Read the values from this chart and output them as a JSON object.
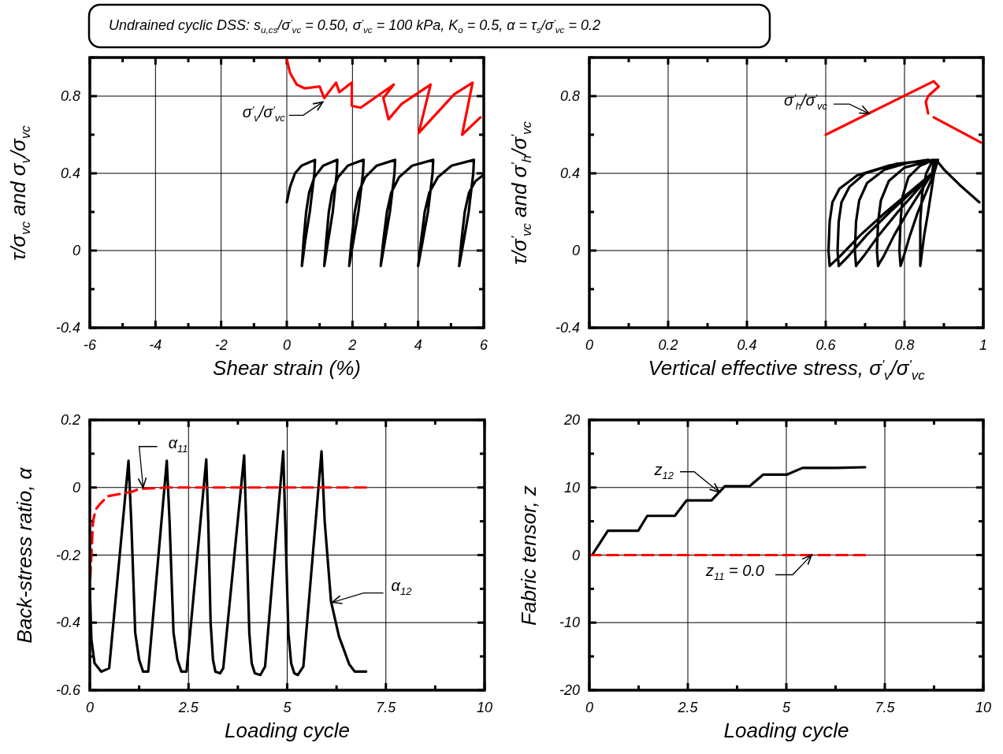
{
  "chart_data": [
    {
      "type": "line",
      "title": "Undrained cyclic DSS: s$_{u,cs}$/σ$^{'}$$_{vc}$ = 0.50, σ$^{'}$$_{vc}$ = 100 kPa, K$_{o}$ = 0.5, α = τ$_{s}$/σ$^{'}$$_{vc}$ = 0.2",
      "xlabel": "Shear strain (%)",
      "ylabel": "τ/σ$_{vc}$ and σ$_{v}$/σ$_{vc}$",
      "xlim": [
        -6,
        6
      ],
      "ylim": [
        -0.4,
        1.0
      ],
      "xticks": [
        -6,
        {
          "value": -5,
          "label": null
        },
        -4,
        {
          "value": -3,
          "label": null
        },
        -2,
        {
          "value": -1,
          "label": null
        },
        0,
        {
          "value": 1,
          "label": null
        },
        2,
        {
          "value": 3,
          "label": null
        },
        4,
        {
          "value": 5,
          "label": null
        },
        6
      ],
      "yticks": [
        -0.4,
        {
          "value": -0.2,
          "label": null
        },
        0,
        {
          "value": 0.2,
          "label": null
        },
        0.4,
        {
          "value": 0.6,
          "label": null
        },
        0.8,
        {
          "value": 1.0,
          "label": null
        }
      ],
      "grid": true,
      "series": [
        {
          "color": "#000000",
          "x": [
            0,
            0.1,
            0.25,
            0.45,
            0.86,
            0.84,
            0.7,
            0.56,
            0.46,
            0.51,
            0.59,
            0.68,
            0.84,
            1.11,
            1.54,
            1.52,
            1.4,
            1.26,
            1.14,
            1.2,
            1.28,
            1.38,
            1.56,
            1.86,
            2.34,
            2.32,
            2.18,
            2.03,
            1.9,
            1.97,
            2.07,
            2.18,
            2.39,
            2.74,
            3.3,
            3.28,
            3.14,
            2.99,
            2.86,
            2.94,
            3.05,
            3.18,
            3.42,
            3.82,
            4.46,
            4.44,
            4.3,
            4.14,
            4.0,
            4.09,
            4.2,
            4.34,
            4.6,
            5.02,
            5.7,
            5.68,
            5.54,
            5.39,
            5.25,
            5.32,
            5.42,
            5.55,
            5.75,
            5.98
          ],
          "values": [
            0.25,
            0.33,
            0.4,
            0.44,
            0.47,
            0.4,
            0.2,
            0.05,
            -0.08,
            0.05,
            0.2,
            0.3,
            0.38,
            0.44,
            0.47,
            0.4,
            0.2,
            0.05,
            -0.08,
            0.05,
            0.2,
            0.3,
            0.38,
            0.44,
            0.47,
            0.4,
            0.2,
            0.05,
            -0.08,
            0.05,
            0.2,
            0.3,
            0.38,
            0.44,
            0.47,
            0.4,
            0.2,
            0.05,
            -0.08,
            0.05,
            0.2,
            0.3,
            0.38,
            0.44,
            0.47,
            0.4,
            0.2,
            0.05,
            -0.08,
            0.05,
            0.2,
            0.3,
            0.38,
            0.44,
            0.47,
            0.4,
            0.2,
            0.05,
            -0.08,
            0.05,
            0.2,
            0.3,
            0.36,
            0.39
          ]
        },
        {
          "color": "#ff0000",
          "line_style": "solid",
          "x": [
            0,
            0.1,
            0.3,
            0.55,
            1.0,
            1.14,
            1.5,
            1.6,
            1.98,
            1.98,
            2.25,
            3.26,
            2.94,
            3.1,
            3.5,
            4.38,
            4.02,
            5.1,
            5.66,
            5.34,
            5.9
          ],
          "values": [
            0.99,
            0.92,
            0.86,
            0.84,
            0.85,
            0.79,
            0.87,
            0.82,
            0.87,
            0.75,
            0.74,
            0.86,
            0.79,
            0.68,
            0.76,
            0.86,
            0.61,
            0.81,
            0.87,
            0.6,
            0.69
          ]
        }
      ],
      "annotations": [
        {
          "text": "σ$^{'}$$_{v}$/σ$^{'}$$_{vc}$",
          "x": 1.1,
          "y": 0.77
        }
      ]
    },
    {
      "type": "line",
      "xlabel": "Vertical effective stress, σ$^{'}$$_{v}$/σ$^{'}$$_{vc}$",
      "ylabel": "τ/σ$^{'}$$_{vc}$ and σ$^{'}$$_{h}$/σ$^{'}$$_{vc}$",
      "xlim": [
        0,
        1
      ],
      "ylim": [
        -0.4,
        1.0
      ],
      "xticks": [
        0,
        {
          "value": 0.1,
          "label": null
        },
        0.2,
        {
          "value": 0.3,
          "label": null
        },
        0.4,
        {
          "value": 0.5,
          "label": null
        },
        0.6,
        {
          "value": 0.7,
          "label": null
        },
        0.8,
        {
          "value": 0.9,
          "label": null
        },
        1
      ],
      "yticks": [
        -0.4,
        {
          "value": -0.2,
          "label": null
        },
        0,
        {
          "value": 0.2,
          "label": null
        },
        0.4,
        {
          "value": 0.6,
          "label": null
        },
        0.8,
        {
          "value": 1.0,
          "label": null
        }
      ],
      "grid": true,
      "series": [
        {
          "color": "#000000",
          "x": [
            0.99,
            0.94,
            0.9,
            0.88,
            0.875,
            0.86,
            0.85,
            0.843,
            0.84,
            0.84,
            0.845,
            0.855,
            0.87,
            0.885,
            0.875,
            0.834,
            0.814,
            0.798,
            0.79,
            0.787,
            0.79,
            0.795,
            0.81,
            0.84,
            0.875,
            0.87,
            0.808,
            0.774,
            0.747,
            0.735,
            0.733,
            0.73,
            0.733,
            0.74,
            0.76,
            0.8,
            0.875,
            0.87,
            0.783,
            0.735,
            0.696,
            0.68,
            0.677,
            0.674,
            0.677,
            0.685,
            0.705,
            0.75,
            0.81,
            0.875,
            0.87,
            0.763,
            0.704,
            0.657,
            0.638,
            0.633,
            0.63,
            0.633,
            0.64,
            0.66,
            0.7,
            0.78,
            0.875,
            0.87,
            0.753,
            0.688,
            0.636,
            0.615,
            0.61,
            0.607,
            0.61,
            0.617,
            0.635,
            0.68,
            0.76,
            0.86
          ],
          "values": [
            0.25,
            0.34,
            0.42,
            0.47,
            0.4,
            0.2,
            0.08,
            -0.03,
            -0.08,
            0.15,
            0.3,
            0.4,
            0.46,
            0.47,
            0.4,
            0.2,
            0.08,
            -0.03,
            -0.08,
            0.0,
            0.15,
            0.28,
            0.38,
            0.44,
            0.47,
            0.4,
            0.2,
            0.08,
            -0.03,
            -0.07,
            -0.08,
            0.0,
            0.15,
            0.26,
            0.36,
            0.43,
            0.47,
            0.4,
            0.2,
            0.08,
            -0.03,
            -0.07,
            -0.08,
            0.0,
            0.15,
            0.26,
            0.35,
            0.42,
            0.455,
            0.47,
            0.4,
            0.2,
            0.08,
            -0.03,
            -0.07,
            -0.08,
            0.0,
            0.15,
            0.25,
            0.33,
            0.4,
            0.45,
            0.47,
            0.4,
            0.2,
            0.08,
            -0.03,
            -0.07,
            -0.08,
            0.0,
            0.15,
            0.25,
            0.32,
            0.39,
            0.44,
            0.47
          ]
        },
        {
          "color": "#ff0000",
          "line_style": "solid",
          "x": [
            0.6,
            0.874,
            0.887,
            0.86,
            0.854,
            0.86,
            0.867,
            0.874,
            0.994
          ],
          "values": [
            0.6,
            0.877,
            0.85,
            0.8,
            0.77,
            0.71,
            null,
            0.69,
            0.56
          ]
        }
      ],
      "annotations": [
        {
          "text": "σ$^{'}$$_{h}$/σ$^{'}$$_{vc}$",
          "x": 0.71,
          "y": 0.71
        }
      ]
    },
    {
      "type": "line",
      "xlabel": "Loading cycle",
      "ylabel": "Back-stress ratio, α",
      "xlim": [
        0,
        10
      ],
      "ylim": [
        -0.6,
        0.2
      ],
      "xticks": [
        0,
        {
          "value": 1.25,
          "label": null
        },
        2.5,
        {
          "value": 3.75,
          "label": null
        },
        5,
        {
          "value": 6.25,
          "label": null
        },
        7.5,
        {
          "value": 8.75,
          "label": null
        },
        10
      ],
      "yticks": [
        -0.6,
        {
          "value": -0.5,
          "label": null
        },
        -0.4,
        {
          "value": -0.3,
          "label": null
        },
        -0.2,
        {
          "value": -0.1,
          "label": null
        },
        0,
        {
          "value": 0.1,
          "label": null
        },
        0.2
      ],
      "grid": true,
      "series": [
        {
          "color": "#000000",
          "x": [
            0,
            0.04,
            0.12,
            0.29,
            0.49,
            0.98,
            1.05,
            1.15,
            1.25,
            1.35,
            1.48,
            1.95,
            2.02,
            2.12,
            2.22,
            2.32,
            2.45,
            2.95,
            3.0,
            3.06,
            3.12,
            3.18,
            3.3,
            3.38,
            3.91,
            3.96,
            4.04,
            4.1,
            4.18,
            4.32,
            4.44,
            4.9,
            4.95,
            5.03,
            5.1,
            5.18,
            5.27,
            5.41,
            5.87,
            5.95,
            6.11,
            6.31,
            6.57,
            6.71,
            7.0
          ],
          "values": [
            -0.3,
            -0.45,
            -0.52,
            -0.545,
            -0.535,
            0.079,
            -0.1,
            -0.43,
            -0.51,
            -0.545,
            -0.545,
            0.079,
            -0.1,
            -0.43,
            -0.51,
            -0.545,
            -0.545,
            0.083,
            -0.1,
            -0.4,
            -0.51,
            -0.545,
            -0.55,
            -0.535,
            0.095,
            -0.1,
            -0.43,
            -0.52,
            -0.55,
            -0.555,
            -0.53,
            0.107,
            -0.1,
            -0.43,
            -0.52,
            -0.55,
            -0.555,
            -0.53,
            0.107,
            -0.1,
            -0.337,
            -0.44,
            -0.523,
            -0.545,
            -0.545
          ]
        },
        {
          "color": "#ff0000",
          "line_style": "dashed",
          "x": [
            0.01,
            0.04,
            0.08,
            0.15,
            0.25,
            0.45,
            1.08,
            1.25,
            2.0,
            7.0
          ],
          "values": [
            -0.27,
            -0.2,
            -0.1,
            -0.065,
            -0.05,
            -0.026,
            -0.012,
            -0.004,
            0.0,
            0.0
          ]
        }
      ],
      "annotations": [
        {
          "text": "α$_{11}$",
          "x": 1.35,
          "y": 0.0
        },
        {
          "text": "α$_{12}$",
          "x": 6.14,
          "y": -0.34
        }
      ]
    },
    {
      "type": "line",
      "xlabel": "Loading cycle",
      "ylabel": "Fabric tensor, z",
      "xlim": [
        0,
        10
      ],
      "ylim": [
        -20,
        20
      ],
      "xticks": [
        0,
        {
          "value": 1.25,
          "label": null
        },
        2.5,
        {
          "value": 3.75,
          "label": null
        },
        5,
        {
          "value": 6.25,
          "label": null
        },
        7.5,
        {
          "value": 8.75,
          "label": null
        },
        10
      ],
      "yticks": [
        -20,
        {
          "value": -15,
          "label": null
        },
        -10,
        {
          "value": -5,
          "label": null
        },
        0,
        {
          "value": 5,
          "label": null
        },
        10,
        {
          "value": 15,
          "label": null
        },
        20
      ],
      "grid": true,
      "series": [
        {
          "color": "#000000",
          "x": [
            0,
            0.07,
            0.47,
            1.24,
            1.47,
            2.17,
            2.47,
            3.1,
            3.44,
            4.07,
            4.41,
            5.01,
            5.41,
            6.27,
            7.0
          ],
          "values": [
            0,
            0,
            3.6,
            3.6,
            5.8,
            5.8,
            8.1,
            8.1,
            10.2,
            10.2,
            11.9,
            11.9,
            12.9,
            12.9,
            13.0
          ]
        },
        {
          "color": "#ff0000",
          "line_style": "dashed",
          "x": [
            0,
            7.0
          ],
          "values": [
            0,
            0
          ]
        }
      ],
      "annotations": [
        {
          "text": "z$_{12}$",
          "x": 3.3,
          "y": 9.3
        },
        {
          "text": "z$_{11}$ = 0.0",
          "x": 5.64,
          "y": 0
        }
      ]
    }
  ]
}
